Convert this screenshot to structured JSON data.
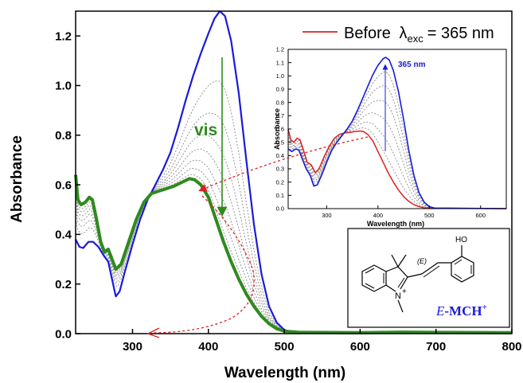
{
  "chart_data": [
    {
      "type": "line",
      "xlabel": "Wavelength (nm)",
      "ylabel": "Absorbance",
      "xlim": [
        225,
        800
      ],
      "ylim": [
        0,
        1.3
      ],
      "xticks": [
        300,
        400,
        500,
        600,
        700,
        800
      ],
      "yticks": [
        0.0,
        0.2,
        0.4,
        0.6,
        0.8,
        1.0,
        1.2
      ],
      "grid": false,
      "legend": {
        "position": "top-right",
        "entry": "Before λexc = 365 nm",
        "prefix": "Before",
        "lambda": "λ",
        "sub": "exc",
        "suffix": "= 365 nm"
      },
      "annotations": {
        "arrow_label": "vis",
        "molecule_label": "E-MCH",
        "molecule_label_main": "E",
        "molecule_label_rest": "-MCH",
        "molecule_label_charge": "+",
        "stereo_label": "(E)",
        "hydroxyl_label": "HO",
        "nitrogen_label": "N",
        "charge_label": "+"
      },
      "series": [
        {
          "role": "start",
          "color": "#1a1adb",
          "points": [
            [
              225,
              0.38
            ],
            [
              230,
              0.35
            ],
            [
              235,
              0.345
            ],
            [
              242,
              0.37
            ],
            [
              248,
              0.37
            ],
            [
              255,
              0.35
            ],
            [
              262,
              0.315
            ],
            [
              268,
              0.29
            ],
            [
              273,
              0.22
            ],
            [
              278,
              0.15
            ],
            [
              283,
              0.17
            ],
            [
              290,
              0.25
            ],
            [
              300,
              0.36
            ],
            [
              310,
              0.46
            ],
            [
              320,
              0.54
            ],
            [
              330,
              0.6
            ],
            [
              340,
              0.66
            ],
            [
              350,
              0.73
            ],
            [
              360,
              0.83
            ],
            [
              370,
              0.94
            ],
            [
              380,
              1.04
            ],
            [
              390,
              1.13
            ],
            [
              400,
              1.21
            ],
            [
              408,
              1.27
            ],
            [
              415,
              1.3
            ],
            [
              422,
              1.28
            ],
            [
              430,
              1.18
            ],
            [
              440,
              0.97
            ],
            [
              450,
              0.7
            ],
            [
              460,
              0.44
            ],
            [
              470,
              0.24
            ],
            [
              480,
              0.11
            ],
            [
              490,
              0.045
            ],
            [
              500,
              0.015
            ],
            [
              510,
              0.006
            ],
            [
              530,
              0.004
            ],
            [
              600,
              0.003
            ],
            [
              800,
              0.002
            ]
          ]
        },
        {
          "role": "end",
          "color": "#2f8a1e",
          "points": [
            [
              225,
              0.64
            ],
            [
              228,
              0.54
            ],
            [
              232,
              0.52
            ],
            [
              238,
              0.53
            ],
            [
              243,
              0.55
            ],
            [
              247,
              0.54
            ],
            [
              252,
              0.47
            ],
            [
              258,
              0.37
            ],
            [
              263,
              0.33
            ],
            [
              268,
              0.34
            ],
            [
              273,
              0.3
            ],
            [
              278,
              0.26
            ],
            [
              285,
              0.28
            ],
            [
              295,
              0.37
            ],
            [
              305,
              0.46
            ],
            [
              315,
              0.53
            ],
            [
              325,
              0.565
            ],
            [
              335,
              0.575
            ],
            [
              345,
              0.585
            ],
            [
              355,
              0.595
            ],
            [
              365,
              0.61
            ],
            [
              375,
              0.625
            ],
            [
              382,
              0.62
            ],
            [
              390,
              0.6
            ],
            [
              400,
              0.55
            ],
            [
              410,
              0.46
            ],
            [
              420,
              0.37
            ],
            [
              430,
              0.29
            ],
            [
              440,
              0.22
            ],
            [
              450,
              0.16
            ],
            [
              460,
              0.11
            ],
            [
              470,
              0.07
            ],
            [
              480,
              0.04
            ],
            [
              490,
              0.02
            ],
            [
              500,
              0.01
            ],
            [
              520,
              0.005
            ],
            [
              600,
              0.004
            ],
            [
              655,
              0.006
            ],
            [
              700,
              0.005
            ],
            [
              800,
              0.004
            ]
          ]
        }
      ],
      "intermediate_peaks": [
        1.09,
        0.98,
        0.89,
        0.82,
        0.76,
        0.71,
        0.67,
        0.64
      ]
    },
    {
      "type": "line",
      "inset": true,
      "xlabel": "Wavelength (nm)",
      "ylabel": "Absorbance",
      "xlim": [
        225,
        650
      ],
      "ylim": [
        0,
        1.2
      ],
      "xticks": [
        300,
        400,
        500,
        600
      ],
      "yticks": [
        0.0,
        0.1,
        0.2,
        0.3,
        0.4,
        0.5,
        0.6,
        0.7,
        0.8,
        0.9,
        1.0,
        1.1,
        1.2
      ],
      "annotations": {
        "arrow_label": "365 nm"
      },
      "series": [
        {
          "role": "before",
          "color": "#e02020",
          "points": [
            [
              225,
              0.6
            ],
            [
              230,
              0.52
            ],
            [
              236,
              0.5
            ],
            [
              242,
              0.53
            ],
            [
              248,
              0.52
            ],
            [
              255,
              0.44
            ],
            [
              262,
              0.35
            ],
            [
              270,
              0.33
            ],
            [
              278,
              0.27
            ],
            [
              285,
              0.3
            ],
            [
              295,
              0.39
            ],
            [
              305,
              0.47
            ],
            [
              315,
              0.53
            ],
            [
              325,
              0.56
            ],
            [
              335,
              0.57
            ],
            [
              345,
              0.575
            ],
            [
              355,
              0.58
            ],
            [
              365,
              0.585
            ],
            [
              372,
              0.58
            ],
            [
              380,
              0.56
            ],
            [
              390,
              0.51
            ],
            [
              400,
              0.43
            ],
            [
              410,
              0.35
            ],
            [
              420,
              0.27
            ],
            [
              430,
              0.2
            ],
            [
              440,
              0.14
            ],
            [
              450,
              0.09
            ],
            [
              460,
              0.055
            ],
            [
              470,
              0.03
            ],
            [
              480,
              0.015
            ],
            [
              490,
              0.006
            ],
            [
              500,
              0.003
            ],
            [
              650,
              0.0
            ]
          ]
        },
        {
          "role": "after",
          "color": "#1a1adb",
          "points": [
            [
              225,
              0.45
            ],
            [
              232,
              0.43
            ],
            [
              240,
              0.45
            ],
            [
              246,
              0.44
            ],
            [
              252,
              0.38
            ],
            [
              260,
              0.3
            ],
            [
              268,
              0.25
            ],
            [
              275,
              0.17
            ],
            [
              282,
              0.18
            ],
            [
              290,
              0.25
            ],
            [
              300,
              0.35
            ],
            [
              310,
              0.44
            ],
            [
              320,
              0.5
            ],
            [
              330,
              0.55
            ],
            [
              340,
              0.6
            ],
            [
              350,
              0.66
            ],
            [
              360,
              0.74
            ],
            [
              370,
              0.83
            ],
            [
              380,
              0.92
            ],
            [
              390,
              1.01
            ],
            [
              400,
              1.08
            ],
            [
              410,
              1.13
            ],
            [
              415,
              1.14
            ],
            [
              422,
              1.12
            ],
            [
              430,
              1.04
            ],
            [
              440,
              0.88
            ],
            [
              450,
              0.67
            ],
            [
              460,
              0.44
            ],
            [
              470,
              0.25
            ],
            [
              480,
              0.12
            ],
            [
              490,
              0.05
            ],
            [
              500,
              0.015
            ],
            [
              510,
              0.004
            ],
            [
              650,
              0.0
            ]
          ]
        }
      ],
      "intermediate_peaks": [
        0.66,
        0.74,
        0.83,
        0.92,
        1.0,
        1.07
      ]
    }
  ]
}
